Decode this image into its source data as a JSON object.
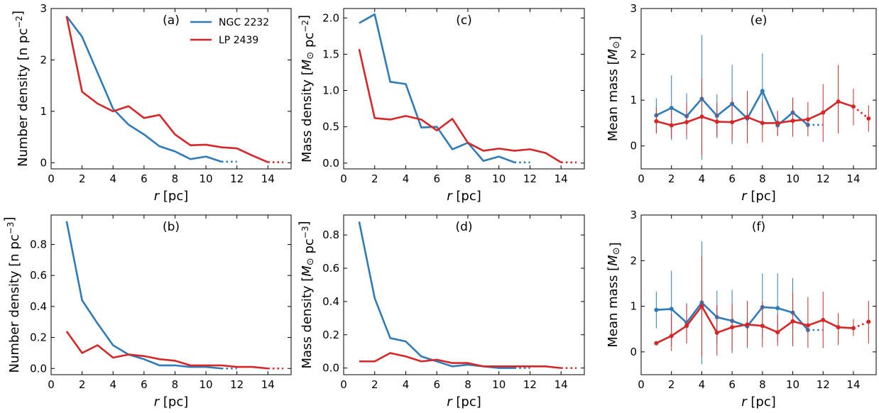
{
  "colors": {
    "ngc": "#2f7bb9",
    "lp": "#d62728"
  },
  "legend": {
    "ngc_label": "NGC 2232",
    "lp_label": "LP 2439"
  },
  "chart_data": [
    {
      "id": "a",
      "type": "line",
      "tag": "(a)",
      "xlabel": "r [pc]",
      "ylabel": "Number density [n pc^-2]",
      "xlim": [
        0,
        15.5
      ],
      "ylim": [
        -0.12,
        3.0
      ],
      "xticks": [
        0,
        2,
        4,
        6,
        8,
        10,
        12,
        14
      ],
      "yticks": [
        0,
        1,
        2,
        3
      ],
      "legend": true,
      "series": [
        {
          "name": "NGC 2232",
          "color": "ngc",
          "x": [
            1,
            2,
            3,
            4,
            5,
            6,
            7,
            8,
            9,
            10,
            11
          ],
          "y": [
            2.85,
            2.45,
            1.75,
            1.05,
            0.74,
            0.55,
            0.32,
            0.22,
            0.07,
            0.12,
            0.02
          ],
          "tail": [
            11,
            12
          ]
        },
        {
          "name": "LP 2439",
          "color": "lp",
          "x": [
            1,
            2,
            3,
            4,
            5,
            6,
            7,
            8,
            9,
            10,
            11,
            12,
            13,
            14
          ],
          "y": [
            2.85,
            1.38,
            1.15,
            1.0,
            1.1,
            0.87,
            0.93,
            0.55,
            0.34,
            0.35,
            0.3,
            0.28,
            0.14,
            0.01
          ],
          "tail": [
            14,
            15
          ]
        }
      ]
    },
    {
      "id": "c",
      "type": "line",
      "tag": "(c)",
      "xlabel": "r [pc]",
      "ylabel": "Mass density [M_sun pc^-2]",
      "xlim": [
        0,
        15.5
      ],
      "ylim": [
        -0.08,
        2.13
      ],
      "xticks": [
        0,
        2,
        4,
        6,
        8,
        10,
        12,
        14
      ],
      "yticks": [
        0.0,
        0.5,
        1.0,
        1.5,
        2.0
      ],
      "yticklabels": [
        "0.0",
        "0.5",
        "1.0",
        "1.5",
        "2.0"
      ],
      "series": [
        {
          "name": "NGC 2232",
          "color": "ngc",
          "x": [
            1,
            2,
            3,
            4,
            5,
            6,
            7,
            8,
            9,
            10,
            11
          ],
          "y": [
            1.93,
            2.05,
            1.12,
            1.09,
            0.49,
            0.5,
            0.19,
            0.28,
            0.03,
            0.09,
            0.01
          ],
          "tail": [
            11,
            12
          ]
        },
        {
          "name": "LP 2439",
          "color": "lp",
          "x": [
            1,
            2,
            3,
            4,
            5,
            6,
            7,
            8,
            9,
            10,
            11,
            12,
            13,
            14
          ],
          "y": [
            1.57,
            0.62,
            0.6,
            0.65,
            0.6,
            0.45,
            0.61,
            0.28,
            0.17,
            0.2,
            0.17,
            0.19,
            0.14,
            0.01
          ],
          "tail": [
            14,
            15
          ]
        }
      ]
    },
    {
      "id": "e",
      "type": "line",
      "tag": "(e)",
      "xlabel": "r [pc]",
      "ylabel": "Mean mass [M_sun]",
      "xlim": [
        0,
        15.5
      ],
      "ylim": [
        -0.5,
        3.0
      ],
      "xticks": [
        0,
        2,
        4,
        6,
        8,
        10,
        12,
        14
      ],
      "yticks": [
        0,
        1,
        2,
        3
      ],
      "markers": true,
      "series": [
        {
          "name": "NGC 2232",
          "color": "ngc",
          "x": [
            1,
            2,
            3,
            4,
            5,
            6,
            7,
            8,
            9,
            10,
            11
          ],
          "y": [
            0.67,
            0.83,
            0.65,
            1.03,
            0.66,
            0.92,
            0.6,
            1.2,
            0.45,
            0.73,
            0.46
          ],
          "yerr": [
            [
              0.3,
              1.04
            ],
            [
              0.13,
              1.54
            ],
            [
              0.14,
              1.15
            ],
            [
              -0.3,
              2.42
            ],
            [
              0.17,
              1.13
            ],
            [
              0.04,
              1.77
            ],
            [
              0.1,
              1.15
            ],
            [
              0.4,
              2.02
            ],
            [
              0.22,
              0.73
            ],
            [
              0.45,
              1.05
            ],
            [
              0.37,
              0.59
            ]
          ],
          "tail": [
            11,
            12
          ]
        },
        {
          "name": "LP 2439",
          "color": "lp",
          "x": [
            1,
            2,
            3,
            4,
            5,
            6,
            7,
            8,
            9,
            10,
            11,
            12,
            13,
            14
          ],
          "y": [
            0.54,
            0.45,
            0.52,
            0.64,
            0.53,
            0.52,
            0.63,
            0.5,
            0.5,
            0.55,
            0.58,
            0.73,
            0.97,
            0.86
          ],
          "yerr": [
            [
              0.27,
              0.85
            ],
            [
              0.17,
              0.78
            ],
            [
              0.23,
              0.95
            ],
            [
              -0.2,
              1.48
            ],
            [
              0.2,
              0.95
            ],
            [
              0.1,
              1.05
            ],
            [
              0.06,
              1.2
            ],
            [
              0.08,
              0.98
            ],
            [
              0.22,
              0.77
            ],
            [
              0.2,
              1.05
            ],
            [
              0.21,
              0.96
            ],
            [
              0.09,
              1.35
            ],
            [
              0.27,
              1.77
            ],
            [
              0.45,
              1.25
            ]
          ],
          "tail": [
            14,
            15
          ],
          "tail_y": [
            0.86,
            0.6
          ],
          "tail_err": [
            0.31,
            0.89
          ]
        }
      ]
    },
    {
      "id": "b",
      "type": "line",
      "tag": "(b)",
      "xlabel": "r [pc]",
      "ylabel": "Number density [n pc^-3]",
      "xlim": [
        0,
        15.5
      ],
      "ylim": [
        -0.04,
        0.99
      ],
      "xticks": [
        0,
        2,
        4,
        6,
        8,
        10,
        12,
        14
      ],
      "yticks": [
        0.0,
        0.2,
        0.4,
        0.6,
        0.8
      ],
      "yticklabels": [
        "0.0",
        "0.2",
        "0.4",
        "0.6",
        "0.8"
      ],
      "series": [
        {
          "name": "NGC 2232",
          "color": "ngc",
          "x": [
            1,
            2,
            3,
            4,
            5,
            6,
            7,
            8,
            9,
            10,
            11
          ],
          "y": [
            0.95,
            0.44,
            0.29,
            0.15,
            0.09,
            0.06,
            0.02,
            0.02,
            0.01,
            0.01,
            0.0
          ],
          "tail": [
            11,
            12
          ]
        },
        {
          "name": "LP 2439",
          "color": "lp",
          "x": [
            1,
            2,
            3,
            4,
            5,
            6,
            7,
            8,
            9,
            10,
            11,
            12,
            13,
            14
          ],
          "y": [
            0.24,
            0.1,
            0.15,
            0.07,
            0.09,
            0.08,
            0.06,
            0.05,
            0.02,
            0.02,
            0.02,
            0.01,
            0.01,
            0.0
          ],
          "tail": [
            14,
            15
          ]
        }
      ]
    },
    {
      "id": "d",
      "type": "line",
      "tag": "(d)",
      "xlabel": "r [pc]",
      "ylabel": "Mass density [M_sun pc^-3]",
      "xlim": [
        0,
        15.5
      ],
      "ylim": [
        -0.04,
        0.92
      ],
      "xticks": [
        0,
        2,
        4,
        6,
        8,
        10,
        12,
        14
      ],
      "yticks": [
        0.0,
        0.2,
        0.4,
        0.6,
        0.8
      ],
      "yticklabels": [
        "0.0",
        "0.2",
        "0.4",
        "0.6",
        "0.8"
      ],
      "series": [
        {
          "name": "NGC 2232",
          "color": "ngc",
          "x": [
            1,
            2,
            3,
            4,
            5,
            6,
            7,
            8,
            9,
            10,
            11
          ],
          "y": [
            0.88,
            0.42,
            0.18,
            0.16,
            0.07,
            0.04,
            0.01,
            0.02,
            0.01,
            0.0,
            0.0
          ],
          "tail": [
            11,
            12
          ]
        },
        {
          "name": "LP 2439",
          "color": "lp",
          "x": [
            1,
            2,
            3,
            4,
            5,
            6,
            7,
            8,
            9,
            10,
            11,
            12,
            13,
            14
          ],
          "y": [
            0.04,
            0.04,
            0.09,
            0.07,
            0.04,
            0.05,
            0.03,
            0.03,
            0.01,
            0.01,
            0.01,
            0.01,
            0.01,
            0.0
          ],
          "tail": [
            14,
            15
          ]
        }
      ]
    },
    {
      "id": "f",
      "type": "line",
      "tag": "(f)",
      "xlabel": "r [pc]",
      "ylabel": "Mean mass [M_sun]",
      "xlim": [
        0,
        15.5
      ],
      "ylim": [
        -0.5,
        3.0
      ],
      "xticks": [
        0,
        2,
        4,
        6,
        8,
        10,
        12,
        14
      ],
      "yticks": [
        0,
        1,
        2,
        3
      ],
      "markers": true,
      "series": [
        {
          "name": "NGC 2232",
          "color": "ngc",
          "x": [
            1,
            2,
            3,
            4,
            5,
            6,
            7,
            8,
            9,
            10,
            11
          ],
          "y": [
            0.92,
            0.94,
            0.64,
            1.08,
            0.76,
            0.68,
            0.56,
            0.98,
            0.96,
            0.86,
            0.48
          ],
          "yerr": [
            [
              0.52,
              1.32
            ],
            [
              0.13,
              1.78
            ],
            [
              0.2,
              1.07
            ],
            [
              -0.27,
              2.42
            ],
            [
              0.18,
              1.34
            ],
            [
              -0.03,
              1.36
            ],
            [
              0.08,
              1.12
            ],
            [
              0.3,
              1.72
            ],
            [
              0.22,
              1.72
            ],
            [
              0.2,
              1.62
            ],
            [
              0.4,
              0.57
            ]
          ],
          "tail": [
            11,
            12
          ]
        },
        {
          "name": "LP 2439",
          "color": "lp",
          "x": [
            1,
            2,
            3,
            4,
            5,
            6,
            7,
            8,
            9,
            10,
            11,
            12,
            13,
            14
          ],
          "y": [
            0.19,
            0.35,
            0.57,
            1.0,
            0.42,
            0.54,
            0.6,
            0.57,
            0.43,
            0.67,
            0.58,
            0.7,
            0.54,
            0.52
          ],
          "yerr": [
            [
              0.19,
              0.19
            ],
            [
              0.02,
              0.85
            ],
            [
              0.18,
              1.04
            ],
            [
              -0.1,
              2.1
            ],
            [
              -0.08,
              1.02
            ],
            [
              0.02,
              1.05
            ],
            [
              0.12,
              1.12
            ],
            [
              0.1,
              1.1
            ],
            [
              0.13,
              0.82
            ],
            [
              0.12,
              1.3
            ],
            [
              0.09,
              1.2
            ],
            [
              0.08,
              1.32
            ],
            [
              0.15,
              0.85
            ],
            [
              0.35,
              0.72
            ]
          ],
          "tail": [
            14,
            15
          ],
          "tail_y": [
            0.52,
            0.66
          ],
          "tail_err": [
            0.18,
            1.12
          ]
        }
      ]
    }
  ]
}
